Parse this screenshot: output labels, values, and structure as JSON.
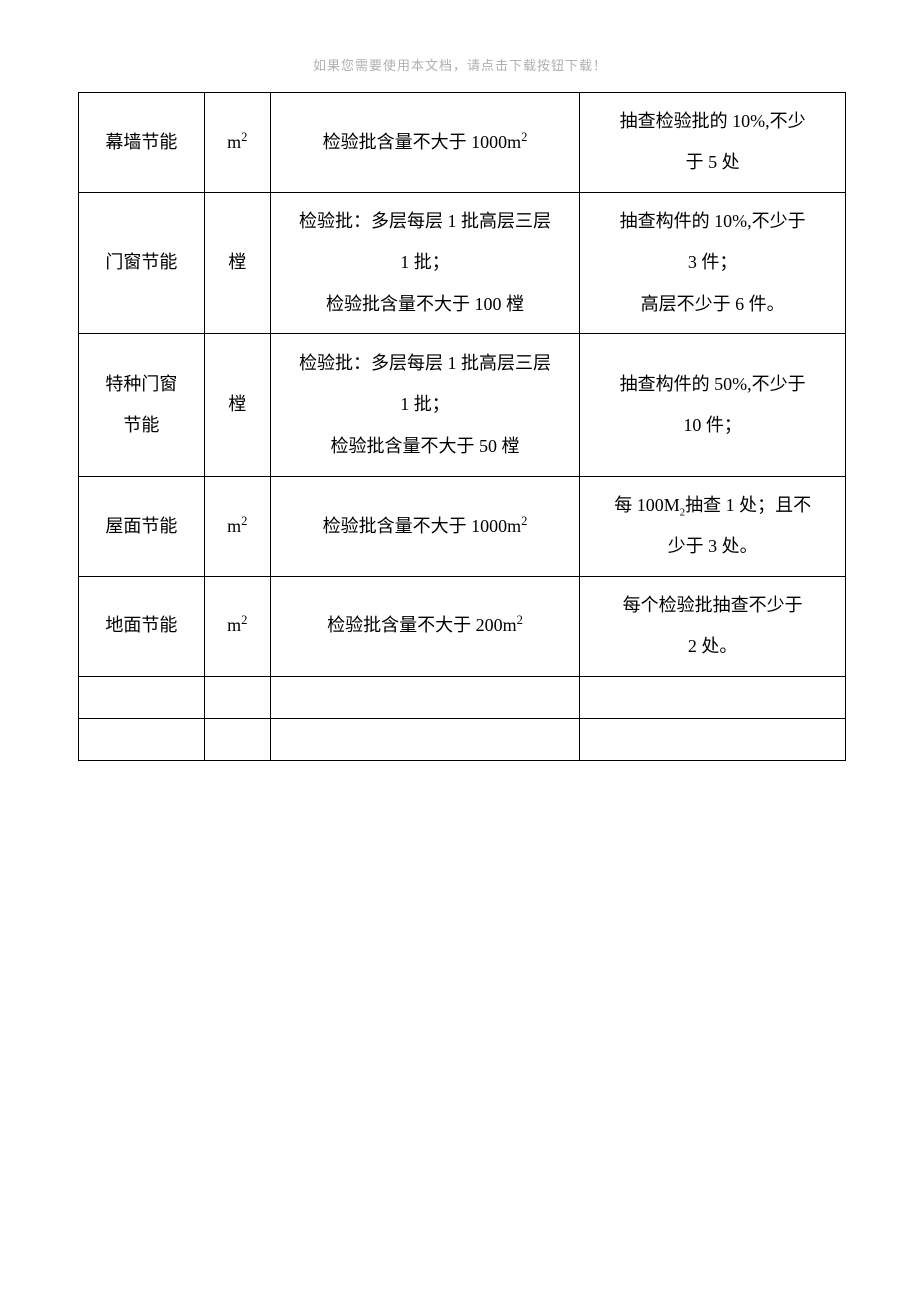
{
  "header": {
    "note": "如果您需要使用本文档，请点击下载按钮下载！"
  },
  "table": {
    "columns": {
      "col1_width": 126,
      "col2_width": 66,
      "col3_width": 310,
      "col4_width": 266
    },
    "border_color": "#000000",
    "background_color": "#ffffff",
    "text_color": "#000000",
    "font_size": 18,
    "font_family": "SimSun",
    "rows": [
      {
        "height": 95,
        "cells": [
          "幕墙节能",
          "m²",
          "检验批含量不大于 1000m²",
          "抽查检验批的 10%,不少于 5 处"
        ]
      },
      {
        "height": 135,
        "cells": [
          "门窗节能",
          "樘",
          "检验批：多层每层 1 批高层三层 1 批；\n检验批含量不大于 100 樘",
          "抽查构件的 10%,不少于 3 件；\n高层不少于 6 件。"
        ]
      },
      {
        "height": 143,
        "cells": [
          "特种门窗节能",
          "樘",
          "检验批：多层每层 1 批高层三层 1 批；\n检验批含量不大于 50 樘",
          "抽查构件的 50%,不少于 10 件；"
        ]
      },
      {
        "height": 95,
        "cells": [
          "屋面节能",
          "m²",
          "检验批含量不大于 1000m²",
          "每 100M₂抽查 1 处；且不少于 3 处。"
        ]
      },
      {
        "height": 95,
        "cells": [
          "地面节能",
          "m²",
          "检验批含量不大于 200m²",
          "每个检验批抽查不少于 2 处。"
        ]
      },
      {
        "height": 42,
        "cells": [
          "",
          "",
          "",
          ""
        ]
      },
      {
        "height": 42,
        "cells": [
          "",
          "",
          "",
          ""
        ]
      }
    ]
  }
}
